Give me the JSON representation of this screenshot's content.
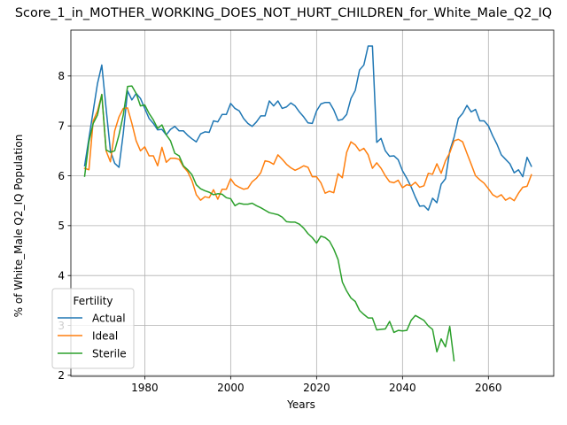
{
  "chart_data": {
    "type": "line",
    "title": "Score_1_in_MOTHER_WORKING_DOES_NOT_HURT_CHILDREN_for_White_Male_Q2_IQ",
    "xlabel": "Years",
    "ylabel": "% of White_Male Q2_IQ Population",
    "xlim": [
      1962.8,
      2075.2
    ],
    "ylim": [
      1.98,
      8.92
    ],
    "xticks": [
      1980,
      2000,
      2020,
      2040,
      2060
    ],
    "yticks": [
      2,
      3,
      4,
      5,
      6,
      7,
      8
    ],
    "grid": true,
    "legend": {
      "title": "Fertility",
      "placement": "lower-left"
    },
    "series": [
      {
        "name": "Actual",
        "color": "#1f77b4",
        "points": [
          [
            1966,
            6.2
          ],
          [
            1967,
            6.75
          ],
          [
            1968,
            7.3
          ],
          [
            1969,
            7.85
          ],
          [
            1970,
            8.22
          ],
          [
            1971,
            7.35
          ],
          [
            1972,
            6.5
          ],
          [
            1973,
            6.25
          ],
          [
            1974,
            6.17
          ],
          [
            1975,
            6.85
          ],
          [
            1976,
            7.7
          ],
          [
            1977,
            7.52
          ],
          [
            1978,
            7.65
          ],
          [
            1979,
            7.55
          ],
          [
            1980,
            7.35
          ],
          [
            1981,
            7.15
          ],
          [
            1982,
            7.05
          ],
          [
            1983,
            6.92
          ],
          [
            1984,
            6.93
          ],
          [
            1985,
            6.82
          ],
          [
            1986,
            6.93
          ],
          [
            1987,
            6.99
          ],
          [
            1988,
            6.9
          ],
          [
            1989,
            6.9
          ],
          [
            1990,
            6.81
          ],
          [
            1991,
            6.74
          ],
          [
            1992,
            6.68
          ],
          [
            1993,
            6.84
          ],
          [
            1994,
            6.88
          ],
          [
            1995,
            6.87
          ],
          [
            1996,
            7.1
          ],
          [
            1997,
            7.08
          ],
          [
            1998,
            7.23
          ],
          [
            1999,
            7.23
          ],
          [
            2000,
            7.45
          ],
          [
            2001,
            7.35
          ],
          [
            2002,
            7.3
          ],
          [
            2003,
            7.15
          ],
          [
            2004,
            7.05
          ],
          [
            2005,
            6.99
          ],
          [
            2006,
            7.08
          ],
          [
            2007,
            7.2
          ],
          [
            2008,
            7.2
          ],
          [
            2009,
            7.5
          ],
          [
            2010,
            7.4
          ],
          [
            2011,
            7.5
          ],
          [
            2012,
            7.35
          ],
          [
            2013,
            7.38
          ],
          [
            2014,
            7.46
          ],
          [
            2015,
            7.4
          ],
          [
            2016,
            7.28
          ],
          [
            2017,
            7.18
          ],
          [
            2018,
            7.06
          ],
          [
            2019,
            7.05
          ],
          [
            2020,
            7.3
          ],
          [
            2021,
            7.44
          ],
          [
            2022,
            7.47
          ],
          [
            2023,
            7.47
          ],
          [
            2024,
            7.32
          ],
          [
            2025,
            7.11
          ],
          [
            2026,
            7.13
          ],
          [
            2027,
            7.23
          ],
          [
            2028,
            7.55
          ],
          [
            2029,
            7.71
          ],
          [
            2030,
            8.12
          ],
          [
            2031,
            8.22
          ],
          [
            2032,
            8.6
          ],
          [
            2033,
            8.6
          ],
          [
            2034,
            6.67
          ],
          [
            2035,
            6.75
          ],
          [
            2036,
            6.5
          ],
          [
            2037,
            6.39
          ],
          [
            2038,
            6.4
          ],
          [
            2039,
            6.32
          ],
          [
            2040,
            6.1
          ],
          [
            2041,
            5.95
          ],
          [
            2042,
            5.78
          ],
          [
            2043,
            5.57
          ],
          [
            2044,
            5.39
          ],
          [
            2045,
            5.4
          ],
          [
            2046,
            5.31
          ],
          [
            2047,
            5.55
          ],
          [
            2048,
            5.46
          ],
          [
            2049,
            5.83
          ],
          [
            2050,
            5.94
          ],
          [
            2051,
            6.5
          ],
          [
            2052,
            6.77
          ],
          [
            2053,
            7.15
          ],
          [
            2054,
            7.25
          ],
          [
            2055,
            7.41
          ],
          [
            2056,
            7.28
          ],
          [
            2057,
            7.33
          ],
          [
            2058,
            7.1
          ],
          [
            2059,
            7.1
          ],
          [
            2060,
            7.0
          ],
          [
            2061,
            6.8
          ],
          [
            2062,
            6.63
          ],
          [
            2063,
            6.42
          ],
          [
            2064,
            6.33
          ],
          [
            2065,
            6.24
          ],
          [
            2066,
            6.06
          ],
          [
            2067,
            6.12
          ],
          [
            2068,
            5.98
          ],
          [
            2069,
            6.37
          ],
          [
            2070,
            6.19
          ]
        ]
      },
      {
        "name": "Ideal",
        "color": "#ff7f0e",
        "points": [
          [
            1966,
            6.15
          ],
          [
            1967,
            6.12
          ],
          [
            1968,
            7.1
          ],
          [
            1969,
            7.3
          ],
          [
            1970,
            7.63
          ],
          [
            1971,
            6.5
          ],
          [
            1972,
            6.28
          ],
          [
            1973,
            6.9
          ],
          [
            1974,
            7.18
          ],
          [
            1975,
            7.35
          ],
          [
            1976,
            7.36
          ],
          [
            1977,
            7.05
          ],
          [
            1978,
            6.7
          ],
          [
            1979,
            6.5
          ],
          [
            1980,
            6.58
          ],
          [
            1981,
            6.4
          ],
          [
            1982,
            6.4
          ],
          [
            1983,
            6.2
          ],
          [
            1984,
            6.57
          ],
          [
            1985,
            6.27
          ],
          [
            1986,
            6.35
          ],
          [
            1987,
            6.35
          ],
          [
            1988,
            6.33
          ],
          [
            1989,
            6.18
          ],
          [
            1990,
            6.08
          ],
          [
            1991,
            5.9
          ],
          [
            1992,
            5.62
          ],
          [
            1993,
            5.51
          ],
          [
            1994,
            5.58
          ],
          [
            1995,
            5.56
          ],
          [
            1996,
            5.72
          ],
          [
            1997,
            5.53
          ],
          [
            1998,
            5.73
          ],
          [
            1999,
            5.73
          ],
          [
            2000,
            5.94
          ],
          [
            2001,
            5.82
          ],
          [
            2002,
            5.77
          ],
          [
            2003,
            5.73
          ],
          [
            2004,
            5.75
          ],
          [
            2005,
            5.88
          ],
          [
            2006,
            5.95
          ],
          [
            2007,
            6.06
          ],
          [
            2008,
            6.3
          ],
          [
            2009,
            6.28
          ],
          [
            2010,
            6.23
          ],
          [
            2011,
            6.42
          ],
          [
            2012,
            6.33
          ],
          [
            2013,
            6.23
          ],
          [
            2014,
            6.16
          ],
          [
            2015,
            6.11
          ],
          [
            2016,
            6.15
          ],
          [
            2017,
            6.2
          ],
          [
            2018,
            6.17
          ],
          [
            2019,
            5.98
          ],
          [
            2020,
            5.98
          ],
          [
            2021,
            5.86
          ],
          [
            2022,
            5.65
          ],
          [
            2023,
            5.69
          ],
          [
            2024,
            5.66
          ],
          [
            2025,
            6.04
          ],
          [
            2026,
            5.96
          ],
          [
            2027,
            6.47
          ],
          [
            2028,
            6.68
          ],
          [
            2029,
            6.62
          ],
          [
            2030,
            6.5
          ],
          [
            2031,
            6.55
          ],
          [
            2032,
            6.42
          ],
          [
            2033,
            6.15
          ],
          [
            2034,
            6.26
          ],
          [
            2035,
            6.15
          ],
          [
            2036,
            6.0
          ],
          [
            2037,
            5.88
          ],
          [
            2038,
            5.86
          ],
          [
            2039,
            5.91
          ],
          [
            2040,
            5.76
          ],
          [
            2041,
            5.82
          ],
          [
            2042,
            5.8
          ],
          [
            2043,
            5.87
          ],
          [
            2044,
            5.77
          ],
          [
            2045,
            5.8
          ],
          [
            2046,
            6.05
          ],
          [
            2047,
            6.03
          ],
          [
            2048,
            6.24
          ],
          [
            2049,
            6.05
          ],
          [
            2050,
            6.3
          ],
          [
            2051,
            6.46
          ],
          [
            2052,
            6.7
          ],
          [
            2053,
            6.73
          ],
          [
            2054,
            6.68
          ],
          [
            2055,
            6.45
          ],
          [
            2056,
            6.23
          ],
          [
            2057,
            6.0
          ],
          [
            2058,
            5.92
          ],
          [
            2059,
            5.85
          ],
          [
            2060,
            5.74
          ],
          [
            2061,
            5.62
          ],
          [
            2062,
            5.57
          ],
          [
            2063,
            5.62
          ],
          [
            2064,
            5.51
          ],
          [
            2065,
            5.56
          ],
          [
            2066,
            5.5
          ],
          [
            2067,
            5.65
          ],
          [
            2068,
            5.77
          ],
          [
            2069,
            5.79
          ],
          [
            2070,
            6.02
          ]
        ]
      },
      {
        "name": "Sterile",
        "color": "#2ca02c",
        "points": [
          [
            1966,
            5.99
          ],
          [
            1967,
            6.68
          ],
          [
            1968,
            7.05
          ],
          [
            1969,
            7.22
          ],
          [
            1970,
            7.63
          ],
          [
            1971,
            6.52
          ],
          [
            1972,
            6.47
          ],
          [
            1973,
            6.5
          ],
          [
            1974,
            6.82
          ],
          [
            1975,
            7.22
          ],
          [
            1976,
            7.79
          ],
          [
            1977,
            7.8
          ],
          [
            1978,
            7.65
          ],
          [
            1979,
            7.4
          ],
          [
            1980,
            7.42
          ],
          [
            1981,
            7.25
          ],
          [
            1982,
            7.12
          ],
          [
            1983,
            6.95
          ],
          [
            1984,
            7.02
          ],
          [
            1985,
            6.82
          ],
          [
            1986,
            6.7
          ],
          [
            1987,
            6.45
          ],
          [
            1988,
            6.4
          ],
          [
            1989,
            6.2
          ],
          [
            1990,
            6.12
          ],
          [
            1991,
            6.02
          ],
          [
            1992,
            5.82
          ],
          [
            1993,
            5.74
          ],
          [
            1994,
            5.7
          ],
          [
            1995,
            5.67
          ],
          [
            1996,
            5.62
          ],
          [
            1997,
            5.64
          ],
          [
            1998,
            5.63
          ],
          [
            1999,
            5.56
          ],
          [
            2000,
            5.54
          ],
          [
            2001,
            5.4
          ],
          [
            2002,
            5.45
          ],
          [
            2003,
            5.43
          ],
          [
            2004,
            5.43
          ],
          [
            2005,
            5.45
          ],
          [
            2006,
            5.4
          ],
          [
            2007,
            5.36
          ],
          [
            2008,
            5.31
          ],
          [
            2009,
            5.26
          ],
          [
            2010,
            5.24
          ],
          [
            2011,
            5.22
          ],
          [
            2012,
            5.17
          ],
          [
            2013,
            5.08
          ],
          [
            2014,
            5.07
          ],
          [
            2015,
            5.07
          ],
          [
            2016,
            5.03
          ],
          [
            2017,
            4.95
          ],
          [
            2018,
            4.84
          ],
          [
            2019,
            4.76
          ],
          [
            2020,
            4.65
          ],
          [
            2021,
            4.79
          ],
          [
            2022,
            4.76
          ],
          [
            2023,
            4.69
          ],
          [
            2024,
            4.53
          ],
          [
            2025,
            4.32
          ],
          [
            2026,
            3.87
          ],
          [
            2027,
            3.69
          ],
          [
            2028,
            3.55
          ],
          [
            2029,
            3.48
          ],
          [
            2030,
            3.3
          ],
          [
            2031,
            3.22
          ],
          [
            2032,
            3.15
          ],
          [
            2033,
            3.15
          ],
          [
            2034,
            2.91
          ],
          [
            2035,
            2.92
          ],
          [
            2036,
            2.93
          ],
          [
            2037,
            3.08
          ],
          [
            2038,
            2.86
          ],
          [
            2039,
            2.9
          ],
          [
            2040,
            2.89
          ],
          [
            2041,
            2.9
          ],
          [
            2042,
            3.1
          ],
          [
            2043,
            3.2
          ],
          [
            2044,
            3.15
          ],
          [
            2045,
            3.1
          ],
          [
            2046,
            2.99
          ],
          [
            2047,
            2.92
          ],
          [
            2048,
            2.47
          ],
          [
            2049,
            2.73
          ],
          [
            2050,
            2.57
          ],
          [
            2051,
            2.98
          ],
          [
            2052,
            2.29
          ]
        ]
      }
    ]
  }
}
